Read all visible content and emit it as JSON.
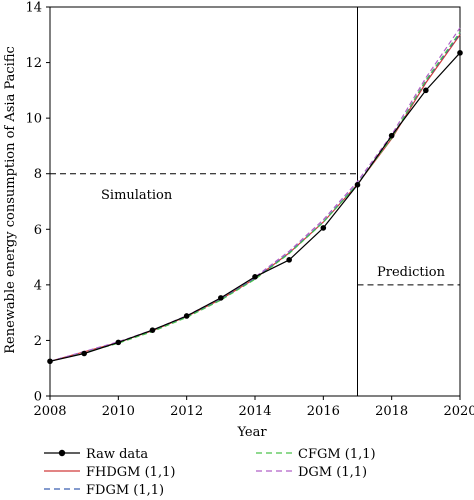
{
  "chart_data": {
    "type": "line",
    "xlabel": "Year",
    "ylabel": "Renewable energy consumption of Asia Pacific",
    "xlim": [
      2008,
      2020
    ],
    "ylim": [
      0,
      14
    ],
    "xticks": [
      2008,
      2010,
      2012,
      2014,
      2016,
      2018,
      2020
    ],
    "yticks": [
      0,
      2,
      4,
      6,
      8,
      10,
      12,
      14
    ],
    "grid": false,
    "legend_position": "bottom",
    "annotations": [
      {
        "text": "Simulation",
        "hline_y": 8,
        "x_range": [
          2008,
          2017
        ]
      },
      {
        "text": "Prediction",
        "hline_y": 4,
        "x_range": [
          2017,
          2020
        ]
      }
    ],
    "divider_x": 2017,
    "x": [
      2008,
      2009,
      2010,
      2011,
      2012,
      2013,
      2014,
      2015,
      2016,
      2017,
      2018,
      2019,
      2020
    ],
    "series": [
      {
        "name": "Raw data",
        "color": "#000000",
        "style": "solid-marker",
        "values": [
          1.25,
          1.53,
          1.93,
          2.37,
          2.88,
          3.53,
          4.29,
          4.9,
          6.05,
          7.6,
          9.37,
          11.0,
          12.35
        ]
      },
      {
        "name": "FHDGM (1,1)",
        "color": "#d03a3a",
        "style": "solid",
        "values": [
          1.25,
          1.59,
          1.93,
          2.35,
          2.86,
          3.48,
          4.23,
          5.15,
          6.26,
          7.62,
          9.26,
          11.27,
          13.0
        ]
      },
      {
        "name": "FDGM (1,1)",
        "color": "#3a5fb0",
        "style": "dashed",
        "values": [
          1.25,
          1.58,
          1.92,
          2.34,
          2.85,
          3.47,
          4.23,
          5.15,
          6.27,
          7.64,
          9.3,
          11.33,
          13.05
        ]
      },
      {
        "name": "CFGM (1,1)",
        "color": "#4cc24c",
        "style": "dashed",
        "values": [
          1.25,
          1.56,
          1.9,
          2.32,
          2.83,
          3.45,
          4.2,
          5.13,
          6.25,
          7.62,
          9.3,
          11.36,
          13.1
        ]
      },
      {
        "name": "DGM (1,1)",
        "color": "#b060c8",
        "style": "dashed",
        "values": [
          1.25,
          1.6,
          1.95,
          2.37,
          2.89,
          3.52,
          4.28,
          5.21,
          6.34,
          7.72,
          9.4,
          11.45,
          13.25
        ]
      }
    ]
  }
}
